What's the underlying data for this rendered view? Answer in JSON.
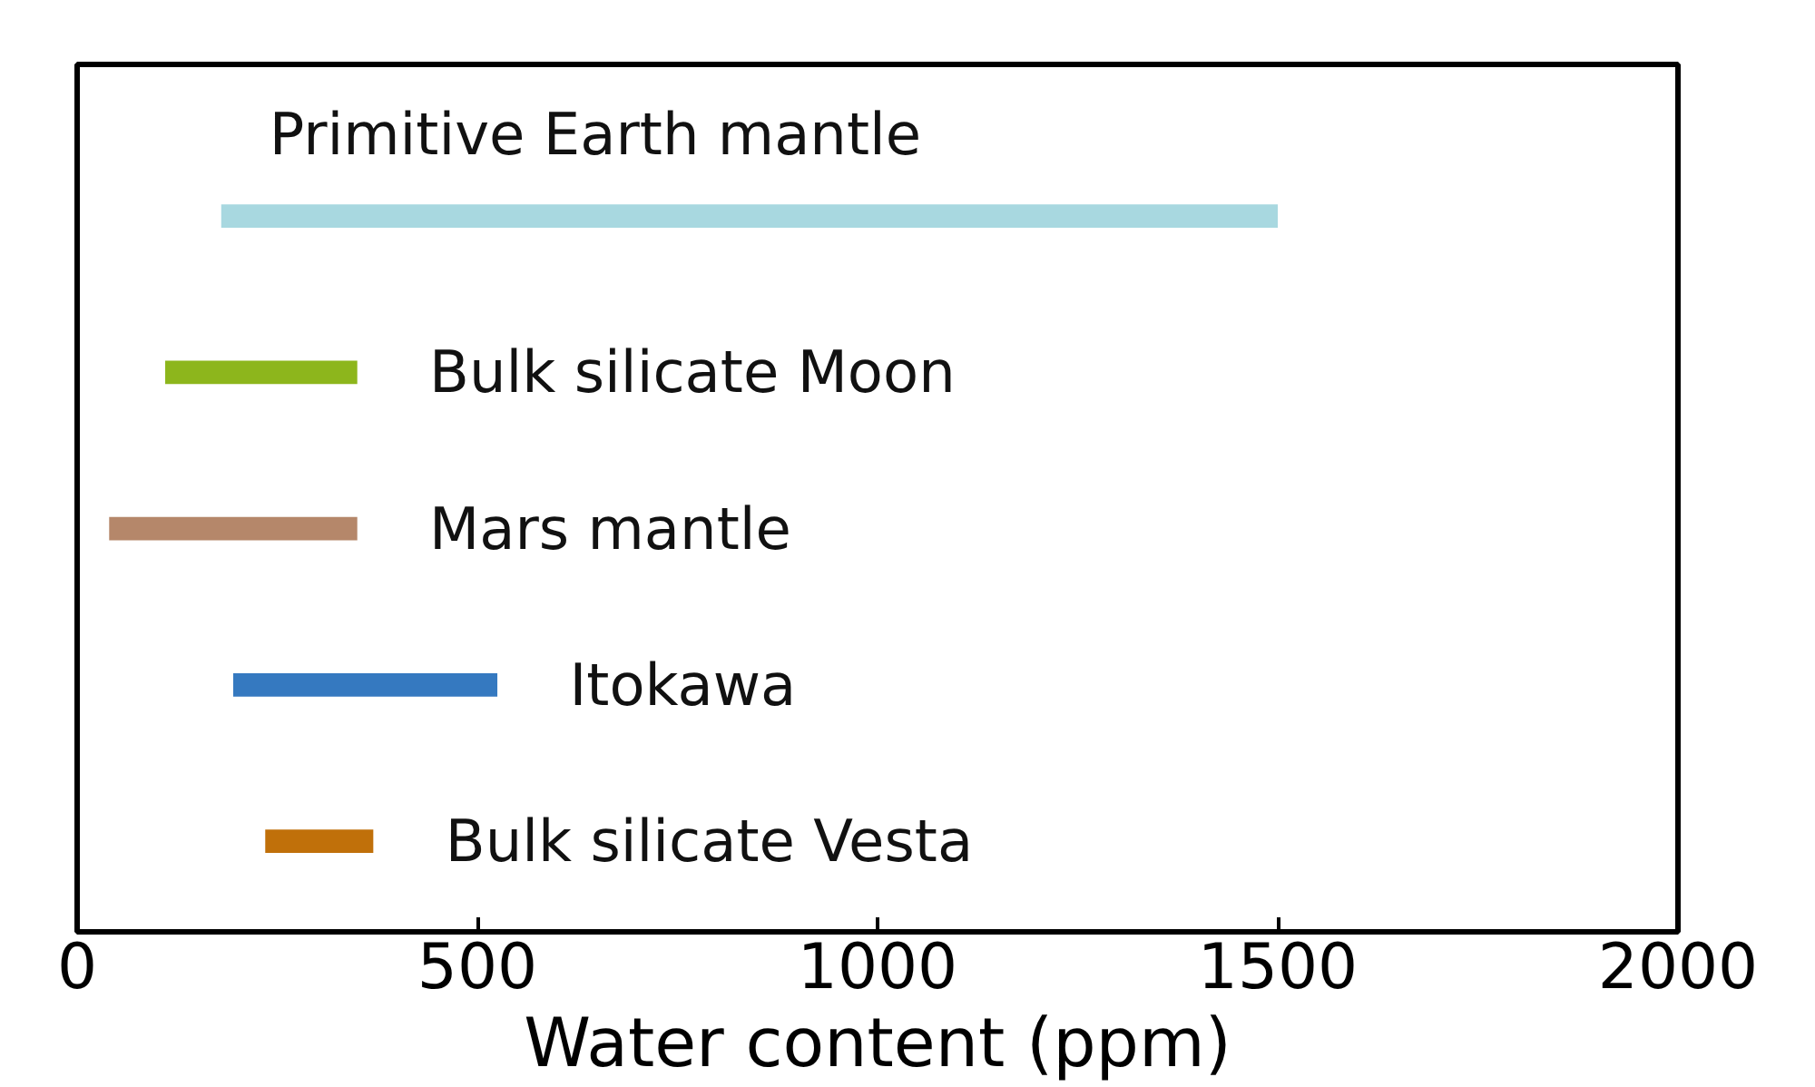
{
  "chart_data": {
    "type": "bar",
    "orientation": "horizontal",
    "xlabel": "Water content (ppm)",
    "categories": [
      "Primitive Earth mantle",
      "Bulk silicate Moon",
      "Mars mantle",
      "Itokawa",
      "Bulk silicate Vesta"
    ],
    "base": [
      180,
      110,
      40,
      195,
      235
    ],
    "values": [
      1320,
      240,
      310,
      330,
      135
    ],
    "colors": [
      "#a8d8e0",
      "#8db61c",
      "#b5876a",
      "#3579c0",
      "#c0700a"
    ],
    "xlim": [
      0,
      2000
    ],
    "xticks": [
      0,
      500,
      1000,
      1500,
      2000
    ],
    "tick_labels": "x",
    "grid": false
  }
}
